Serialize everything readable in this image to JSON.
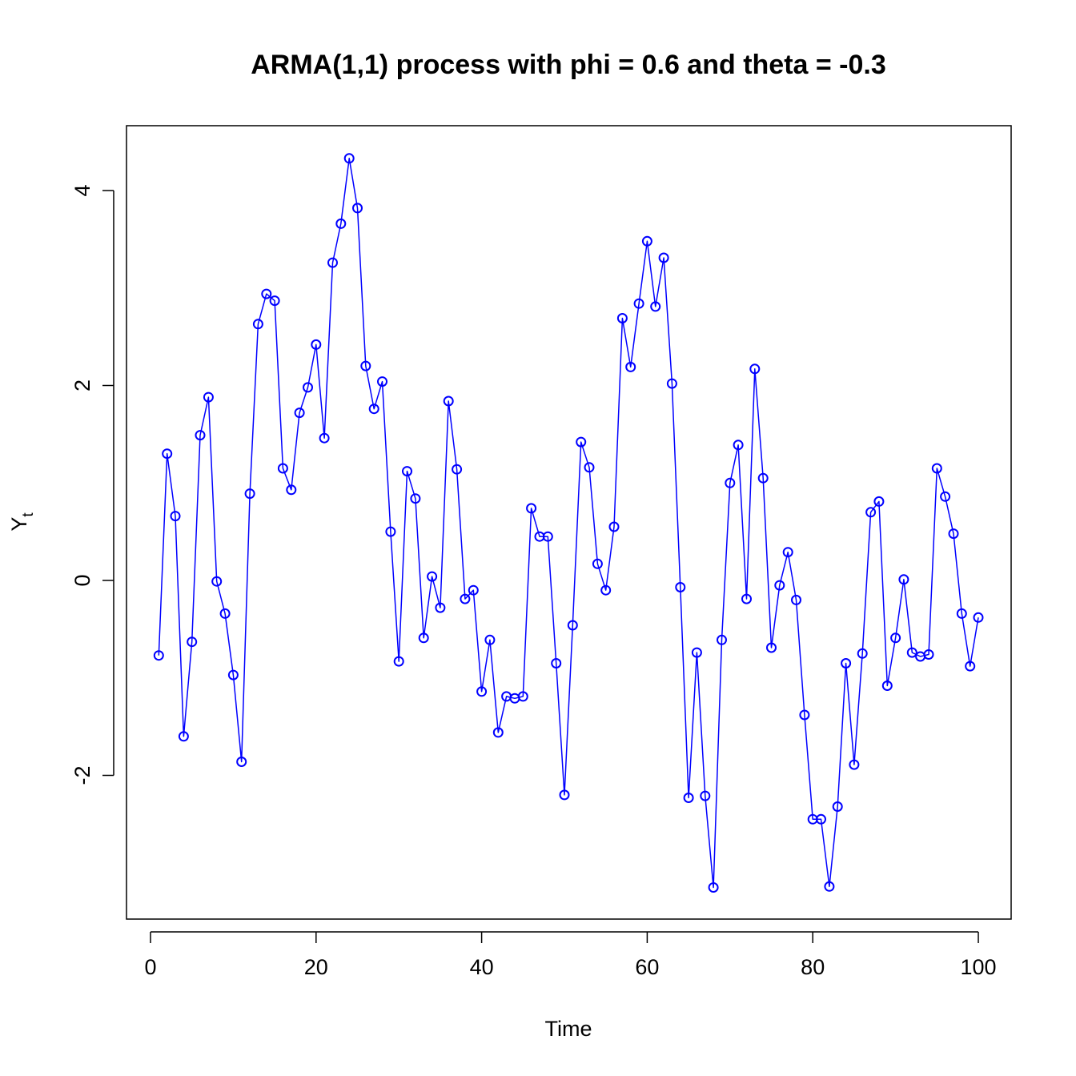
{
  "chart_data": {
    "type": "line",
    "title": "ARMA(1,1) process with phi = 0.6 and theta = -0.3",
    "xlabel": "Time",
    "ylabel": "Y",
    "ylabel_subscript": "t",
    "xlim": [
      0,
      100
    ],
    "ylim": [
      -3.2,
      4.4
    ],
    "x_ticks": [
      0,
      20,
      40,
      60,
      80,
      100
    ],
    "y_ticks": [
      -2,
      0,
      2,
      4
    ],
    "x_tick_labels": [
      "0",
      "20",
      "40",
      "60",
      "80",
      "100"
    ],
    "y_tick_labels": [
      "-2",
      "0",
      "2",
      "4"
    ],
    "grid": false,
    "color": "#0000ff",
    "marker": "open-circle",
    "series": [
      {
        "x": [
          1,
          2,
          3,
          4,
          5,
          6,
          7,
          8,
          9,
          10,
          11,
          12,
          13,
          14,
          15,
          16,
          17,
          18,
          19,
          20,
          21,
          22,
          23,
          24,
          25,
          26,
          27,
          28,
          29,
          30,
          31,
          32,
          33,
          34,
          35,
          36,
          37,
          38,
          39,
          40,
          41,
          42,
          43,
          44,
          45,
          46,
          47,
          48,
          49,
          50,
          51,
          52,
          53,
          54,
          55,
          56,
          57,
          58,
          59,
          60,
          61,
          62,
          63,
          64,
          65,
          66,
          67,
          68,
          69,
          70,
          71,
          72,
          73,
          74,
          75,
          76,
          77,
          78,
          79,
          80,
          81,
          82,
          83,
          84,
          85,
          86,
          87,
          88,
          89,
          90,
          91,
          92,
          93,
          94,
          95,
          96,
          97,
          98,
          99,
          100
        ],
        "values": [
          -0.77,
          1.3,
          0.66,
          -1.6,
          -0.63,
          1.49,
          1.88,
          -0.01,
          -0.34,
          -0.97,
          -1.86,
          0.89,
          2.63,
          2.94,
          2.87,
          1.15,
          0.93,
          1.72,
          1.98,
          2.42,
          1.46,
          3.26,
          3.66,
          4.33,
          3.82,
          2.2,
          1.76,
          2.04,
          0.5,
          -0.83,
          1.12,
          0.84,
          -0.59,
          0.04,
          -0.28,
          1.84,
          1.14,
          -0.19,
          -0.1,
          -1.14,
          -0.61,
          -1.56,
          -1.19,
          -1.21,
          -1.19,
          0.74,
          0.45,
          0.45,
          -0.85,
          -2.2,
          -0.46,
          1.42,
          1.16,
          0.17,
          -0.1,
          0.55,
          2.69,
          2.19,
          2.84,
          3.48,
          2.81,
          3.31,
          2.02,
          -0.07,
          -2.23,
          -0.74,
          -2.21,
          -3.15,
          -0.61,
          1.0,
          1.39,
          -0.19,
          2.17,
          1.05,
          -0.69,
          -0.05,
          0.29,
          -0.2,
          -1.38,
          -2.45,
          -2.45,
          -3.14,
          -2.32,
          -0.85,
          -1.89,
          -0.75,
          0.7,
          0.81,
          -1.08,
          -0.59,
          0.01,
          -0.74,
          -0.78,
          -0.76,
          1.15,
          0.86,
          0.48,
          -0.34,
          -0.88,
          -0.38
        ]
      }
    ]
  }
}
